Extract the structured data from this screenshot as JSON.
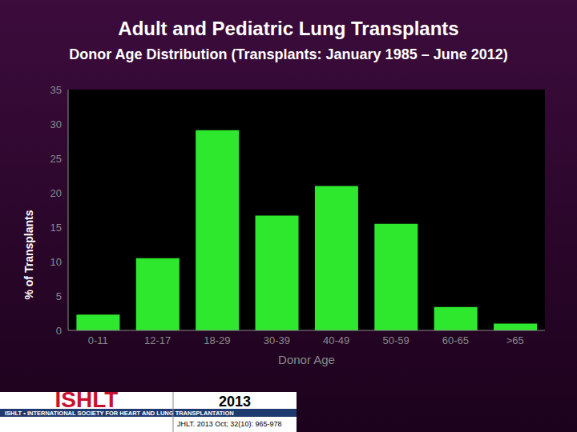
{
  "chart_data": {
    "type": "bar",
    "title": "Adult and Pediatric Lung Transplants",
    "subtitle": "Donor Age Distribution (Transplants: January 1985 – June 2012)",
    "x_label": "Donor Age",
    "y_label": "% of Transplants",
    "categories": [
      "0-11",
      "12-17",
      "18-29",
      "30-39",
      "40-49",
      "50-59",
      "60-65",
      ">65"
    ],
    "values": [
      2.3,
      10.5,
      29.1,
      16.7,
      21.0,
      15.5,
      3.4,
      1.0
    ],
    "color": "#2ee82e",
    "ylim": [
      0,
      35
    ],
    "yticks": [
      0,
      5,
      10,
      15,
      20,
      25,
      30,
      35
    ],
    "grid": false
  },
  "footer": {
    "logo": "ISHLT",
    "logo_strip": "ISHLT • INTERNATIONAL SOCIETY FOR HEART AND LUNG TRANSPLANTATION",
    "year": "2013",
    "citation": "JHLT. 2013 Oct; 32(10): 965-978"
  }
}
